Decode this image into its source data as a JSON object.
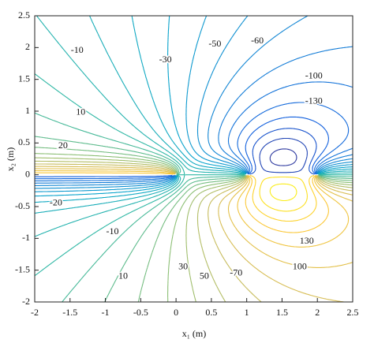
{
  "chart_data": {
    "type": "contour",
    "xlabel": "x₁ (m)",
    "ylabel": "x₂ (m)",
    "xlim": [
      -2,
      2.5
    ],
    "ylim": [
      -2,
      2.5
    ],
    "xticks": [
      -2,
      -1.5,
      -1,
      -0.5,
      0,
      0.5,
      1,
      1.5,
      2,
      2.5
    ],
    "yticks": [
      -2,
      -1.5,
      -1,
      -0.5,
      0,
      0.5,
      1,
      1.5,
      2,
      2.5
    ],
    "levels": [
      -150,
      -140,
      -130,
      -120,
      -110,
      -100,
      -90,
      -80,
      -70,
      -60,
      -50,
      -40,
      -30,
      -20,
      -10,
      0,
      10,
      20,
      30,
      40,
      50,
      60,
      70,
      80,
      90,
      100,
      110,
      120,
      130,
      140,
      150
    ],
    "contour_labels": [
      -10,
      -30,
      -50,
      -60,
      -100,
      -130,
      10,
      20,
      -20,
      -10,
      10,
      30,
      50,
      -70,
      130,
      100
    ],
    "colormap": [
      "#352a87",
      "#0f5cdd",
      "#1481d6",
      "#06a4ca",
      "#2eb7a4",
      "#87bf77",
      "#d1bb59",
      "#fec832",
      "#f9fb0e"
    ]
  }
}
